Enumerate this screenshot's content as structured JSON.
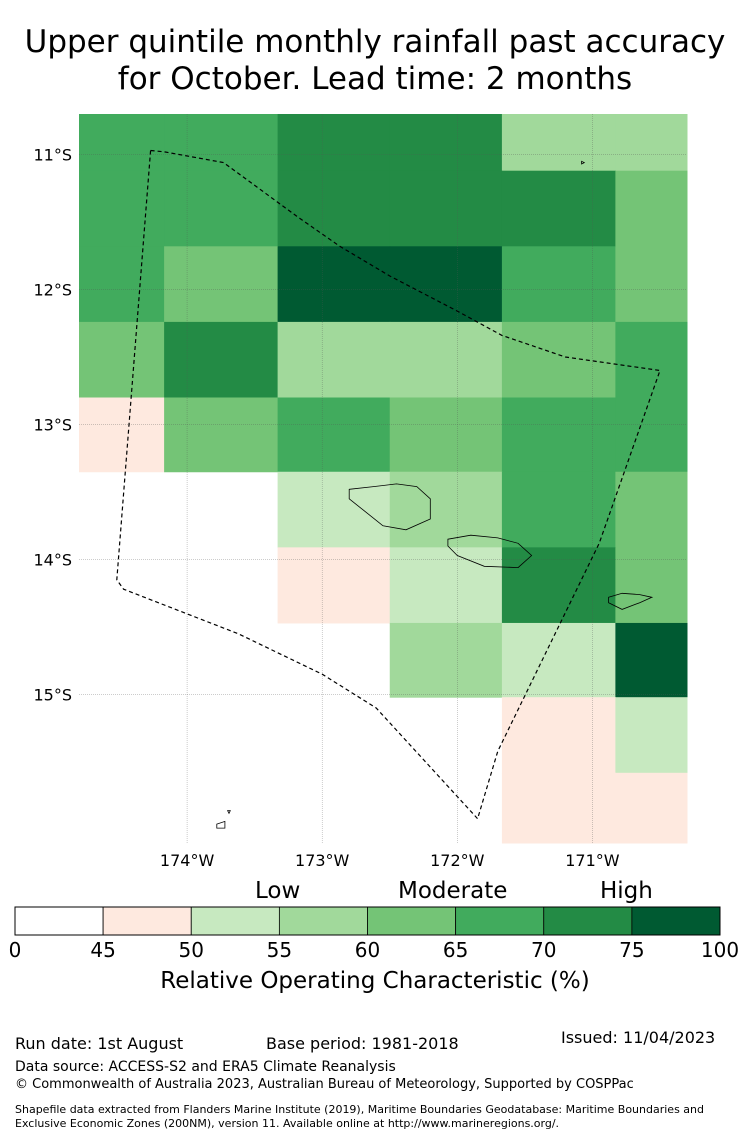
{
  "title": {
    "line1": "Upper quintile monthly rainfall past accuracy",
    "line2": "for October. Lead time: 2 months"
  },
  "map": {
    "lon_range": [
      -174.8,
      -170.3
    ],
    "lat_range": [
      -16.1,
      -10.7
    ],
    "lat_ticks": [
      {
        "value": -11,
        "label": "11°S"
      },
      {
        "value": -12,
        "label": "12°S"
      },
      {
        "value": -13,
        "label": "13°S"
      },
      {
        "value": -14,
        "label": "14°S"
      },
      {
        "value": -15,
        "label": "15°S"
      }
    ],
    "lon_ticks": [
      {
        "value": -174,
        "label": "174°W"
      },
      {
        "value": -173,
        "label": "173°W"
      },
      {
        "value": -172,
        "label": "172°W"
      },
      {
        "value": -171,
        "label": "171°W"
      }
    ],
    "lon_edges": [
      -174.8,
      -174.17,
      -173.33,
      -172.5,
      -171.67,
      -170.83,
      -170.3
    ],
    "lat_edges": [
      -10.7,
      -11.12,
      -11.68,
      -12.24,
      -12.8,
      -13.35,
      -13.91,
      -14.47,
      -15.02,
      -15.58,
      -16.1
    ],
    "grid_values": [
      [
        67,
        67,
        72,
        72,
        58,
        58
      ],
      [
        67,
        67,
        72,
        72,
        72,
        62
      ],
      [
        67,
        62,
        78,
        78,
        67,
        62
      ],
      [
        62,
        72,
        58,
        58,
        62,
        67
      ],
      [
        47,
        62,
        67,
        62,
        67,
        67
      ],
      [
        null,
        null,
        52,
        58,
        67,
        62
      ],
      [
        null,
        null,
        47,
        52,
        72,
        62
      ],
      [
        null,
        null,
        null,
        58,
        52,
        78
      ],
      [
        null,
        null,
        null,
        null,
        47,
        52
      ],
      [
        null,
        null,
        null,
        null,
        47,
        47
      ]
    ],
    "eez_boundary": [
      [
        -174.27,
        -10.97
      ],
      [
        -174.17,
        -10.98
      ],
      [
        -173.73,
        -11.06
      ],
      [
        -173.17,
        -11.47
      ],
      [
        -172.87,
        -11.68
      ],
      [
        -172.5,
        -11.9
      ],
      [
        -172.0,
        -12.16
      ],
      [
        -171.67,
        -12.34
      ],
      [
        -171.2,
        -12.5
      ],
      [
        -170.5,
        -12.6
      ],
      [
        -170.95,
        -13.88
      ],
      [
        -171.7,
        -15.42
      ],
      [
        -171.85,
        -15.92
      ],
      [
        -172.6,
        -15.1
      ],
      [
        -173.0,
        -14.85
      ],
      [
        -173.62,
        -14.55
      ],
      [
        -174.47,
        -14.22
      ],
      [
        -174.52,
        -14.15
      ],
      [
        -174.27,
        -10.97
      ]
    ],
    "islands": [
      {
        "name": "Savaii",
        "points": [
          [
            -172.8,
            -13.48
          ],
          [
            -172.62,
            -13.46
          ],
          [
            -172.45,
            -13.44
          ],
          [
            -172.3,
            -13.46
          ],
          [
            -172.2,
            -13.55
          ],
          [
            -172.2,
            -13.7
          ],
          [
            -172.38,
            -13.78
          ],
          [
            -172.55,
            -13.75
          ],
          [
            -172.7,
            -13.63
          ],
          [
            -172.8,
            -13.55
          ]
        ]
      },
      {
        "name": "Upolu",
        "points": [
          [
            -172.07,
            -13.85
          ],
          [
            -171.9,
            -13.82
          ],
          [
            -171.7,
            -13.84
          ],
          [
            -171.55,
            -13.88
          ],
          [
            -171.45,
            -13.97
          ],
          [
            -171.55,
            -14.06
          ],
          [
            -171.8,
            -14.05
          ],
          [
            -172.0,
            -13.97
          ],
          [
            -172.07,
            -13.9
          ]
        ]
      },
      {
        "name": "Tutuila",
        "points": [
          [
            -170.88,
            -14.28
          ],
          [
            -170.78,
            -14.25
          ],
          [
            -170.65,
            -14.26
          ],
          [
            -170.56,
            -14.28
          ],
          [
            -170.65,
            -14.32
          ],
          [
            -170.78,
            -14.37
          ],
          [
            -170.88,
            -14.32
          ]
        ]
      },
      {
        "name": "Swains",
        "points": [
          [
            -171.08,
            -11.05
          ],
          [
            -171.06,
            -11.06
          ],
          [
            -171.08,
            -11.07
          ]
        ]
      },
      {
        "name": "Rose",
        "points": [
          [
            -173.78,
            -15.96
          ],
          [
            -173.72,
            -15.94
          ],
          [
            -173.72,
            -15.99
          ],
          [
            -173.78,
            -15.99
          ]
        ]
      },
      {
        "name": "Rose2",
        "points": [
          [
            -173.7,
            -15.86
          ],
          [
            -173.68,
            -15.86
          ],
          [
            -173.69,
            -15.88
          ]
        ]
      }
    ]
  },
  "colorbar": {
    "bounds": [
      0,
      45,
      50,
      55,
      60,
      65,
      70,
      75,
      100
    ],
    "colors": [
      "#ffffff",
      "#fee9df",
      "#c7e9c0",
      "#a1d99b",
      "#74c476",
      "#41ab5d",
      "#238b45",
      "#005a32"
    ],
    "tick_labels": [
      "0",
      "45",
      "50",
      "55",
      "60",
      "65",
      "70",
      "75",
      "100"
    ],
    "categories": {
      "low": "Low",
      "moderate": "Moderate",
      "high": "High"
    },
    "label": "Relative Operating Characteristic (%)"
  },
  "footer": {
    "run_date": "Run date: 1st August",
    "base_period": "Base period: 1981-2018",
    "issued": "Issued: 11/04/2023",
    "data_source": "Data source: ACCESS-S2 and ERA5 Climate Reanalysis",
    "copyright": "© Commonwealth of Australia 2023, Australian Bureau of Meteorology, Supported by COSPPac",
    "shapefile": "Shapefile data extracted from Flanders Marine Institute (2019), Maritime Boundaries Geodatabase: Maritime Boundaries and Exclusive Economic Zones (200NM), version 11. Available online at http://www.marineregions.org/."
  }
}
